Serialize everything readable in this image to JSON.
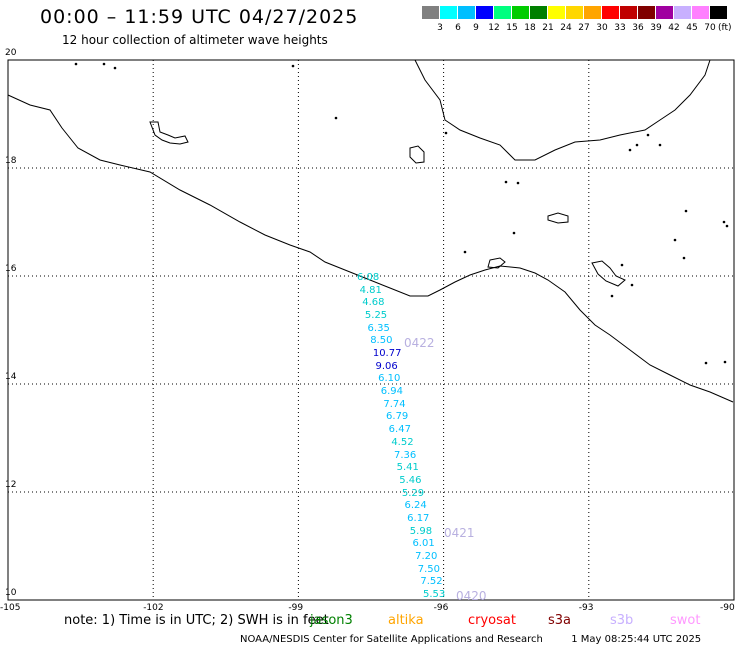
{
  "header": {
    "title": "00:00 – 11:59 UTC 04/27/2025",
    "subtitle": "12 hour collection of altimeter wave heights"
  },
  "colorbar": {
    "units": "(ft)",
    "colors": [
      "#808080",
      "#00ffff",
      "#00bfff",
      "#0000ff",
      "#00ff7f",
      "#00cc00",
      "#008000",
      "#ffff00",
      "#ffd700",
      "#ffa500",
      "#ff0000",
      "#c00000",
      "#800000",
      "#a000a0",
      "#c8b0ff",
      "#ff80ff",
      "#000000"
    ],
    "labels": [
      "3",
      "6",
      "9",
      "12",
      "15",
      "18",
      "21",
      "24",
      "27",
      "30",
      "33",
      "36",
      "39",
      "42",
      "45",
      "70"
    ]
  },
  "map": {
    "lat_labels": [
      "20",
      "18",
      "16",
      "14",
      "12",
      "10"
    ],
    "lon_labels": [
      "-105",
      "-102",
      "-99",
      "-96",
      "-93",
      "-90"
    ]
  },
  "swh_track": {
    "values": [
      "6.08",
      "4.81",
      "4.68",
      "5.25",
      "6.35",
      "8.50",
      "10.77",
      "9.06",
      "6.10",
      "6.94",
      "7.74",
      "6.79",
      "6.47",
      "4.52",
      "7.36",
      "5.41",
      "5.46",
      "5.29",
      "6.24",
      "6.17",
      "5.98",
      "6.01",
      "7.20",
      "7.50",
      "7.52",
      "5.53"
    ],
    "colors": [
      "#00cccc",
      "#00cccc",
      "#00cccc",
      "#00cccc",
      "#00bfff",
      "#00bfff",
      "#0000cc",
      "#0000cc",
      "#00bfff",
      "#00bfff",
      "#00bfff",
      "#00bfff",
      "#00bfff",
      "#00cccc",
      "#00bfff",
      "#00cccc",
      "#00cccc",
      "#00cccc",
      "#00bfff",
      "#00bfff",
      "#00cccc",
      "#00bfff",
      "#00bfff",
      "#00bfff",
      "#00bfff",
      "#00cccc"
    ],
    "pass_times": [
      "0422",
      "0421",
      "0420"
    ]
  },
  "note": "note:  1) Time is in UTC; 2) SWH is in feet",
  "legend": [
    {
      "name": "jason3",
      "color": "#008000"
    },
    {
      "name": "altika",
      "color": "#ffa500"
    },
    {
      "name": "cryosat",
      "color": "#ff0000"
    },
    {
      "name": "s3a",
      "color": "#800000"
    },
    {
      "name": "s3b",
      "color": "#c8b0ff"
    },
    {
      "name": "swot",
      "color": "#ff99ff"
    }
  ],
  "footer": {
    "agency": "NOAA/NESDIS Center for Satellite Applications and Research",
    "timestamp": "1 May 08:25:44 UTC 2025"
  }
}
